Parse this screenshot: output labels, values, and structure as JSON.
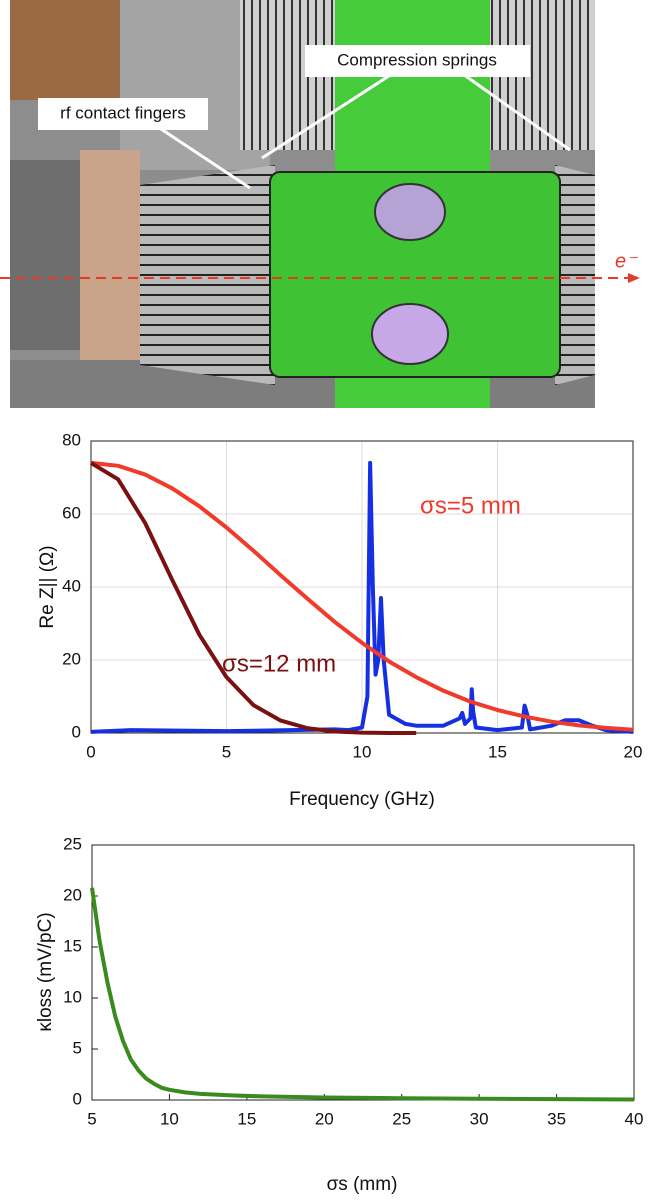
{
  "figure": {
    "labels": [
      "rf contact fingers",
      "Compression springs",
      "e⁻"
    ]
  },
  "chart_data": [
    {
      "type": "line",
      "xlabel": "Frequency (GHz)",
      "ylabel": "Re Z|| (Ω)",
      "xlim": [
        0,
        20
      ],
      "ylim": [
        0,
        80
      ],
      "xticks": [
        0,
        5,
        10,
        15,
        20
      ],
      "yticks": [
        0,
        20,
        40,
        60,
        80
      ],
      "grid": true,
      "series": [
        {
          "color": "#1530e0",
          "x": [
            0,
            1.5,
            5,
            9,
            9.5,
            10,
            10.2,
            10.3,
            10.4,
            10.5,
            10.6,
            10.7,
            10.8,
            11,
            11.6,
            12,
            13,
            13.6,
            13.7,
            13.8,
            14,
            14.05,
            14.1,
            14.2,
            15,
            15.9,
            16,
            16.1,
            16.2,
            17,
            17.5,
            18,
            18.5,
            19,
            20
          ],
          "values": [
            0.3,
            0.8,
            0.5,
            1.0,
            0.8,
            1.5,
            10,
            74,
            40,
            16,
            20,
            37,
            20,
            5,
            2.5,
            2,
            2,
            4,
            5.5,
            2.5,
            4,
            12,
            6,
            1.5,
            0.8,
            1.5,
            7.5,
            5,
            1,
            2,
            3.5,
            3.5,
            2,
            0.8,
            0.3
          ]
        },
        {
          "name": "σs=5 mm",
          "color": "#f03a2a",
          "x": [
            0,
            1,
            2,
            3,
            4,
            5,
            6,
            7,
            8,
            9,
            10,
            11,
            12,
            13,
            14,
            15,
            16,
            17,
            18,
            19,
            20
          ],
          "values": [
            74,
            73.2,
            70.8,
            67.0,
            62.1,
            56.3,
            49.9,
            43.2,
            36.7,
            30.4,
            24.7,
            19.6,
            15.3,
            11.6,
            8.6,
            6.3,
            4.5,
            3.1,
            2.1,
            1.4,
            0.9
          ]
        },
        {
          "name": "σs=12 mm",
          "color": "#7a1010",
          "x": [
            0,
            1,
            2,
            3,
            4,
            5,
            6,
            7,
            8,
            9,
            10,
            11,
            12
          ],
          "values": [
            74,
            69.5,
            57.5,
            41.9,
            26.9,
            15.3,
            7.6,
            3.4,
            1.3,
            0.4,
            0.1,
            0,
            0
          ]
        }
      ]
    },
    {
      "type": "line",
      "xlabel": "σs (mm)",
      "ylabel": "κloss (mV/pC)",
      "xlim": [
        5,
        40
      ],
      "ylim": [
        0,
        25
      ],
      "xticks": [
        5,
        10,
        15,
        20,
        25,
        30,
        35,
        40
      ],
      "yticks": [
        0,
        5,
        10,
        15,
        20,
        25
      ],
      "grid": false,
      "series": [
        {
          "color": "#3a8a1e",
          "x": [
            5,
            5.5,
            6,
            6.5,
            7,
            7.5,
            8,
            8.5,
            9,
            9.5,
            10,
            11,
            12,
            14,
            16,
            20,
            25,
            30,
            35,
            40
          ],
          "values": [
            20.8,
            15.5,
            11.5,
            8.2,
            5.8,
            4.0,
            2.9,
            2.1,
            1.6,
            1.2,
            1.0,
            0.75,
            0.6,
            0.45,
            0.35,
            0.25,
            0.17,
            0.12,
            0.08,
            0.05
          ]
        }
      ]
    }
  ]
}
